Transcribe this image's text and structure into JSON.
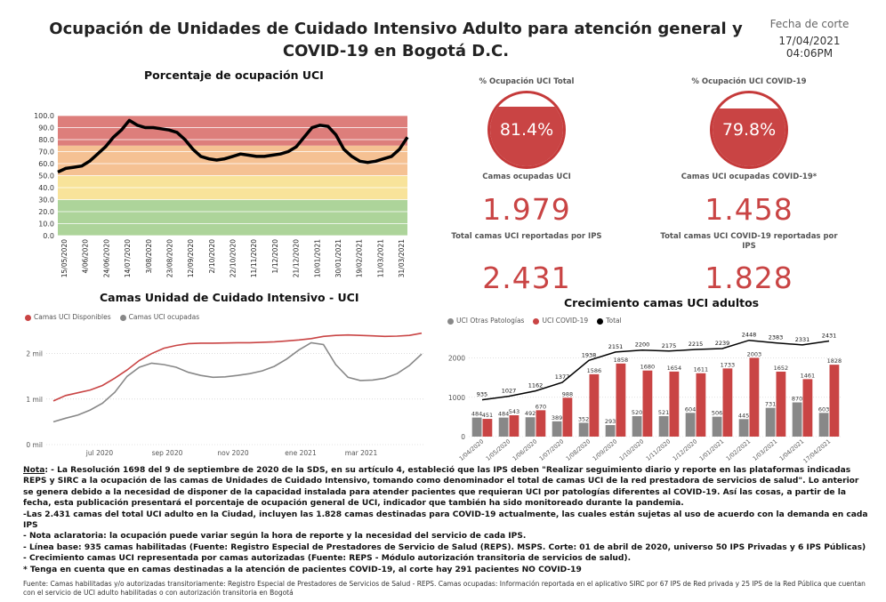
{
  "header": {
    "title_line1": "Ocupación de Unidades de Cuidado Intensivo Adulto para atención general y",
    "title_line2": "COVID-19 en Bogotá D.C.",
    "cut_label": "Fecha de corte",
    "cut_date": "17/04/2021",
    "cut_time": "04:06PM"
  },
  "kpis": {
    "total": {
      "gauge_label": "% Ocupación UCI Total",
      "gauge_value": "81.4%",
      "gauge_fraction": 0.814,
      "occupied_label": "Camas ocupadas UCI",
      "occupied_value": "1.979",
      "reported_label": "Total camas UCI reportadas por IPS",
      "reported_value": "2.431"
    },
    "covid": {
      "gauge_label": "% Ocupación UCI COVID-19",
      "gauge_value": "79.8%",
      "gauge_fraction": 0.798,
      "occupied_label": "Camas UCI ocupadas COVID-19*",
      "occupied_value": "1.458",
      "reported_label": "Total camas UCI COVID-19 reportadas por IPS",
      "reported_value": "1.828"
    }
  },
  "colors": {
    "red": "#c94444",
    "band_red": "#dd7e7b",
    "band_orange": "#f5c193",
    "band_yellow": "#f8e39a",
    "band_green": "#add49a",
    "gray": "#888888",
    "line_black": "#000000"
  },
  "chart_data": [
    {
      "id": "porcentaje",
      "type": "line",
      "title": "Porcentaje de ocupación UCI",
      "ylim": [
        0,
        100
      ],
      "yticks": [
        "0.0",
        "10.0",
        "20.0",
        "30.0",
        "40.0",
        "50.0",
        "60.0",
        "70.0",
        "80.0",
        "90.0",
        "100.0"
      ],
      "bands": [
        {
          "from": 0,
          "to": 30,
          "color": "#add49a"
        },
        {
          "from": 30,
          "to": 50,
          "color": "#f8e39a"
        },
        {
          "from": 50,
          "to": 75,
          "color": "#f5c193"
        },
        {
          "from": 75,
          "to": 100,
          "color": "#dd7e7b"
        }
      ],
      "xticks": [
        "15/05/2020",
        "4/06/2020",
        "24/06/2020",
        "14/07/2020",
        "3/08/2020",
        "23/08/2020",
        "12/09/2020",
        "2/10/2020",
        "22/10/2020",
        "11/11/2020",
        "1/12/2020",
        "21/12/2020",
        "10/01/2021",
        "30/01/2021",
        "19/02/2021",
        "11/03/2021",
        "31/03/2021"
      ],
      "values": [
        53,
        56,
        57,
        58,
        62,
        68,
        74,
        82,
        88,
        96,
        92,
        90,
        90,
        89,
        88,
        86,
        80,
        72,
        66,
        64,
        63,
        64,
        66,
        68,
        67,
        66,
        66,
        67,
        68,
        70,
        74,
        82,
        90,
        92,
        91,
        84,
        72,
        66,
        62,
        61,
        62,
        64,
        66,
        72,
        82
      ]
    },
    {
      "id": "camas",
      "type": "line",
      "title": "Camas Unidad de Cuidado Intensivo - UCI",
      "ylim": [
        0,
        2600
      ],
      "yticks": [
        "0 mil",
        "1 mil",
        "2 mil"
      ],
      "xticks": [
        "jul 2020",
        "sep 2020",
        "nov 2020",
        "ene 2021",
        "mar 2021"
      ],
      "series": [
        {
          "name": "Camas UCI Disponibles",
          "color": "#c94444",
          "values": [
            960,
            1080,
            1140,
            1200,
            1300,
            1460,
            1640,
            1850,
            2000,
            2120,
            2180,
            2220,
            2230,
            2230,
            2235,
            2240,
            2240,
            2250,
            2260,
            2280,
            2300,
            2330,
            2380,
            2400,
            2410,
            2400,
            2390,
            2380,
            2385,
            2400,
            2450
          ]
        },
        {
          "name": "Camas UCI ocupadas",
          "color": "#888888",
          "values": [
            500,
            580,
            650,
            760,
            910,
            1150,
            1500,
            1700,
            1790,
            1760,
            1700,
            1590,
            1520,
            1480,
            1490,
            1520,
            1560,
            1620,
            1720,
            1880,
            2080,
            2240,
            2200,
            1760,
            1480,
            1410,
            1420,
            1460,
            1560,
            1740,
            1990
          ]
        }
      ]
    },
    {
      "id": "crecimiento",
      "type": "bar",
      "title": "Crecimiento camas UCI adultos",
      "ylim": [
        0,
        2600
      ],
      "yticks": [
        "0",
        "1000",
        "2000"
      ],
      "categories": [
        "1/04/2020",
        "1/05/2020",
        "1/06/2020",
        "1/07/2020",
        "1/08/2020",
        "1/09/2020",
        "1/10/2020",
        "1/11/2020",
        "1/12/2020",
        "1/01/2021",
        "1/02/2021",
        "1/03/2021",
        "1/04/2021",
        "17/04/2021"
      ],
      "series": [
        {
          "name": "UCI Otras Patologías",
          "color": "#888888",
          "values": [
            484,
            484,
            492,
            389,
            352,
            293,
            520,
            521,
            604,
            506,
            445,
            731,
            870,
            603
          ]
        },
        {
          "name": "UCI COVID-19",
          "color": "#c94444",
          "values": [
            451,
            543,
            670,
            988,
            1586,
            1858,
            1680,
            1654,
            1611,
            1733,
            2003,
            1652,
            1461,
            1828
          ]
        },
        {
          "name": "Total",
          "color": "#000000",
          "values": [
            935,
            1027,
            1162,
            1377,
            1938,
            2151,
            2200,
            2175,
            2215,
            2239,
            2448,
            2383,
            2331,
            2431
          ]
        }
      ]
    }
  ],
  "notes": {
    "n1_prefix": "Nota",
    "n1_text": ":  - La Resolución 1698 del 9 de septiembre de 2020 de la SDS, en su artículo 4, estableció que las IPS deben \"Realizar seguimiento diario y reporte en las plataformas indicadas REPS y SIRC a la ocupación de las camas de Unidades de Cuidado Intensivo, tomando como denominador el total de camas UCI de la red prestadora de servicios de salud\". Lo anterior se genera debido a la necesidad de disponer de la capacidad instalada para atender pacientes que requieran UCI por patologías diferentes al COVID-19. Así las cosas, a partir de la fecha, esta publicación presentará el porcentaje de ocupación general de UCI, indicador que también ha sido monitoreado durante la pandemia.",
    "n2": "-Las  2.431  camas del total UCI adulto en la Ciudad, incluyen las 1.828 camas destinadas para COVID-19 actualmente, las cuales están sujetas al uso de acuerdo con la demanda en cada IPS",
    "n3": "- Nota aclaratoria: la ocupación puede variar según la hora de reporte y la necesidad del servicio de cada IPS.",
    "n4": "- Línea base: 935 camas habilitadas (Fuente: Registro Especial de Prestadores de Servicio de Salud (REPS). MSPS. Corte: 01 de abril de 2020, universo 50 IPS Privadas y 6 IPS Públicas)",
    "n5": "- Crecimiento camas UCI representada por camas autorizadas (Fuente:  REPS - Módulo autorización transitoria de servicios de salud).",
    "n6": "* Tenga en cuenta que en camas destinadas a la atención de pacientes COVID-19, al corte hay  291  pacientes NO COVID-19",
    "fuente": "Fuente:  Camas habilitadas y/o autorizadas transitoriamente:  Registro Especial de Prestadores de Servicios de Salud - REPS. Camas ocupadas: Información reportada en el aplicativo SIRC por  67   IPS de Red privada y  25    IPS de la Red Pública que cuentan con el servicio de UCI adulto habilitadas o con autorización transitoria en Bogotá"
  }
}
